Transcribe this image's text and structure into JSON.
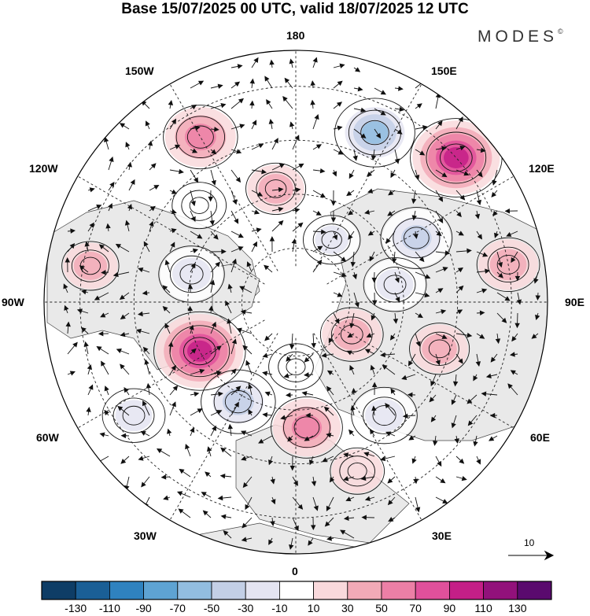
{
  "title": "Base 15/07/2025 00 UTC, valid 18/07/2025 12 UTC",
  "brand": {
    "name": "MODES",
    "mark": "©"
  },
  "longitude_labels": [
    {
      "id": "lon-180",
      "text": "180"
    },
    {
      "id": "lon-150e",
      "text": "150E"
    },
    {
      "id": "lon-120e",
      "text": "120E"
    },
    {
      "id": "lon-90e",
      "text": "90E"
    },
    {
      "id": "lon-60e",
      "text": "60E"
    },
    {
      "id": "lon-30e",
      "text": "30E"
    },
    {
      "id": "lon-0",
      "text": "0"
    },
    {
      "id": "lon-30w",
      "text": "30W"
    },
    {
      "id": "lon-60w",
      "text": "60W"
    },
    {
      "id": "lon-90w",
      "text": "90W"
    },
    {
      "id": "lon-120w",
      "text": "120W"
    },
    {
      "id": "lon-150w",
      "text": "150W"
    }
  ],
  "reference_vector": {
    "value": "10"
  },
  "colorbar": {
    "colors": [
      "#0e3d66",
      "#1a5f96",
      "#2f82bf",
      "#5ea3d3",
      "#92bde0",
      "#c3cfe6",
      "#e4e4f1",
      "#ffffff",
      "#f9d9dc",
      "#f2aab7",
      "#ec7fa6",
      "#e0509b",
      "#c41f87",
      "#92117b",
      "#5a0a6e"
    ],
    "ticks": [
      "-130",
      "-110",
      "-90",
      "-70",
      "-50",
      "-30",
      "-10",
      "10",
      "30",
      "50",
      "70",
      "90",
      "110",
      "130"
    ]
  },
  "anomalies": [
    {
      "lon": 155,
      "lat": 38,
      "value": -70
    },
    {
      "lon": -150,
      "lat": 37,
      "value": 60
    },
    {
      "lon": 132,
      "lat": 30,
      "value": 90
    },
    {
      "lon": 118,
      "lat": 52,
      "value": -55
    },
    {
      "lon": 100,
      "lat": 30,
      "value": 40
    },
    {
      "lon": 100,
      "lat": 62,
      "value": -40
    },
    {
      "lon": -105,
      "lat": 60,
      "value": -45
    },
    {
      "lon": -100,
      "lat": 32,
      "value": 30
    },
    {
      "lon": -63,
      "lat": 60,
      "value": 90
    },
    {
      "lon": -55,
      "lat": 35,
      "value": -40
    },
    {
      "lon": -30,
      "lat": 58,
      "value": -60
    },
    {
      "lon": 5,
      "lat": 55,
      "value": 55
    },
    {
      "lon": 38,
      "lat": 50,
      "value": -45
    },
    {
      "lon": 60,
      "lat": 72,
      "value": 40
    },
    {
      "lon": 72,
      "lat": 48,
      "value": 35
    },
    {
      "lon": 150,
      "lat": 70,
      "value": -30
    },
    {
      "lon": -170,
      "lat": 58,
      "value": 35
    },
    {
      "lon": -135,
      "lat": 52,
      "value": -25
    },
    {
      "lon": 0,
      "lat": 72,
      "value": -25
    },
    {
      "lon": 20,
      "lat": 40,
      "value": 25
    }
  ]
}
